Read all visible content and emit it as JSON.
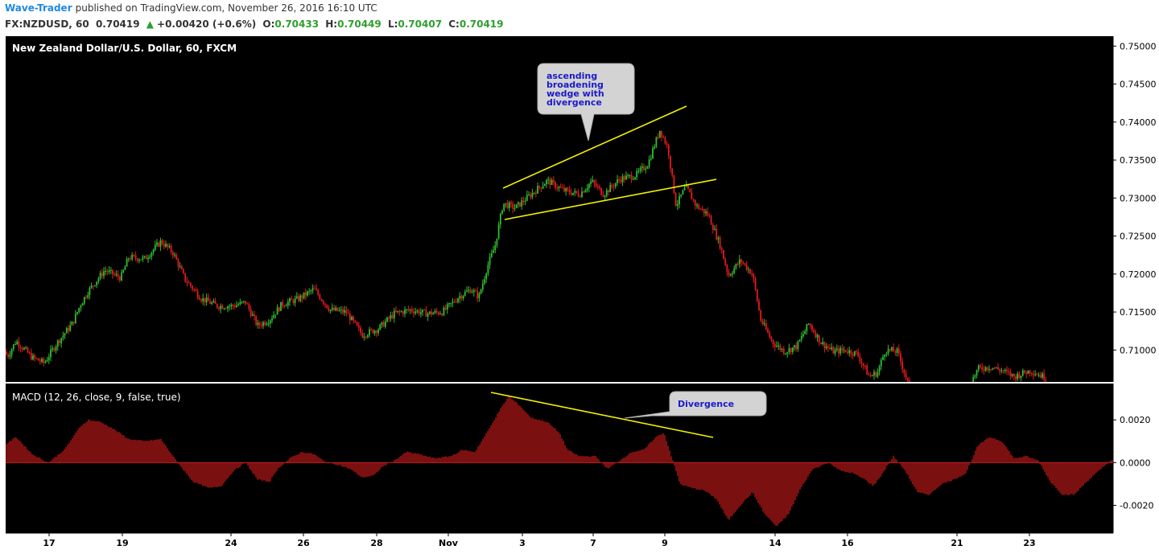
{
  "header": {
    "author": "Wave-Trader",
    "published": "published on TradingView.com, November 26, 2016 16:10 UTC",
    "symbol": "FX:NZDUSD, 60",
    "last": "0.70419",
    "change_arrow": "▲",
    "change": "+0.00420 (+0.6%)",
    "open_label": "O:",
    "open": "0.70433",
    "high_label": "H:",
    "high": "0.70449",
    "low_label": "L:",
    "low": "0.70407",
    "close_label": "C:",
    "close": "0.70419"
  },
  "colors": {
    "background": "#000000",
    "up": "#2fbf2f",
    "down": "#e51b1b",
    "macd": "#cc1a1a",
    "trendline": "#f5f000",
    "callout": "#d3d3d3",
    "callout_text": "#1a1acc"
  },
  "chart_data": [
    {
      "type": "candlestick",
      "title": "New Zealand Dollar/U.S. Dollar, 60, FXCM",
      "ylim": [
        0.7058,
        0.7513
      ],
      "y_ticks": [
        "0.75000",
        "0.74500",
        "0.74000",
        "0.73500",
        "0.73000",
        "0.72500",
        "0.72000",
        "0.71500",
        "0.71000"
      ],
      "x_ticks": [
        "17",
        "19",
        "24",
        "26",
        "28",
        "Nov",
        "3",
        "7",
        "9",
        "14",
        "16",
        "21",
        "23"
      ],
      "close_path": [
        [
          0,
          0.7098
        ],
        [
          10,
          0.7093
        ],
        [
          20,
          0.7112
        ],
        [
          40,
          0.709
        ],
        [
          55,
          0.7083
        ],
        [
          70,
          0.7108
        ],
        [
          90,
          0.7135
        ],
        [
          100,
          0.716
        ],
        [
          110,
          0.7178
        ],
        [
          130,
          0.7205
        ],
        [
          150,
          0.7195
        ],
        [
          160,
          0.7222
        ],
        [
          180,
          0.722
        ],
        [
          200,
          0.7243
        ],
        [
          215,
          0.7228
        ],
        [
          230,
          0.7193
        ],
        [
          250,
          0.7168
        ],
        [
          270,
          0.7158
        ],
        [
          290,
          0.7158
        ],
        [
          305,
          0.7163
        ],
        [
          320,
          0.7132
        ],
        [
          335,
          0.714
        ],
        [
          350,
          0.716
        ],
        [
          370,
          0.7167
        ],
        [
          390,
          0.718
        ],
        [
          410,
          0.7153
        ],
        [
          430,
          0.715
        ],
        [
          450,
          0.712
        ],
        [
          470,
          0.7128
        ],
        [
          490,
          0.7148
        ],
        [
          510,
          0.7153
        ],
        [
          530,
          0.7148
        ],
        [
          550,
          0.715
        ],
        [
          570,
          0.717
        ],
        [
          585,
          0.718
        ],
        [
          595,
          0.717
        ],
        [
          605,
          0.7208
        ],
        [
          615,
          0.7237
        ],
        [
          625,
          0.7293
        ],
        [
          640,
          0.7287
        ],
        [
          660,
          0.7305
        ],
        [
          680,
          0.7323
        ],
        [
          700,
          0.731
        ],
        [
          720,
          0.7305
        ],
        [
          735,
          0.7322
        ],
        [
          750,
          0.7305
        ],
        [
          770,
          0.7325
        ],
        [
          790,
          0.733
        ],
        [
          805,
          0.7345
        ],
        [
          820,
          0.739
        ],
        [
          830,
          0.7365
        ],
        [
          840,
          0.729
        ],
        [
          852,
          0.7315
        ],
        [
          865,
          0.729
        ],
        [
          880,
          0.7278
        ],
        [
          895,
          0.7237
        ],
        [
          905,
          0.7198
        ],
        [
          920,
          0.7218
        ],
        [
          935,
          0.72
        ],
        [
          945,
          0.714
        ],
        [
          960,
          0.711
        ],
        [
          975,
          0.7098
        ],
        [
          990,
          0.7105
        ],
        [
          1005,
          0.7135
        ],
        [
          1020,
          0.711
        ],
        [
          1035,
          0.7098
        ],
        [
          1050,
          0.71
        ],
        [
          1065,
          0.7095
        ],
        [
          1080,
          0.7065
        ],
        [
          1090,
          0.707
        ],
        [
          1100,
          0.71
        ],
        [
          1115,
          0.7098
        ],
        [
          1130,
          0.705
        ],
        [
          1160,
          0.704
        ],
        [
          1200,
          0.7045
        ],
        [
          1215,
          0.7075
        ],
        [
          1230,
          0.7078
        ],
        [
          1245,
          0.7073
        ],
        [
          1260,
          0.7065
        ],
        [
          1280,
          0.7073
        ],
        [
          1300,
          0.7063
        ]
      ]
    },
    {
      "type": "bar",
      "title": "MACD (12, 26, close, 9, false, true)",
      "ylim": [
        -0.0033,
        0.0037
      ],
      "y_ticks": [
        "0.0020",
        "0.0000",
        "-0.0020"
      ],
      "hist_path": [
        [
          5,
          0.0008
        ],
        [
          20,
          0.0012
        ],
        [
          40,
          0.0004
        ],
        [
          60,
          0.0
        ],
        [
          80,
          0.0006
        ],
        [
          100,
          0.0017
        ],
        [
          110,
          0.002
        ],
        [
          125,
          0.0019
        ],
        [
          140,
          0.0016
        ],
        [
          160,
          0.0011
        ],
        [
          180,
          0.001
        ],
        [
          200,
          0.0011
        ],
        [
          215,
          0.0003
        ],
        [
          225,
          -0.0002
        ],
        [
          240,
          -0.0009
        ],
        [
          260,
          -0.0012
        ],
        [
          275,
          -0.0011
        ],
        [
          290,
          -0.0004
        ],
        [
          305,
          0.0
        ],
        [
          320,
          -0.0008
        ],
        [
          335,
          -0.0009
        ],
        [
          345,
          -0.0003
        ],
        [
          360,
          0.0002
        ],
        [
          375,
          0.0005
        ],
        [
          390,
          0.0004
        ],
        [
          405,
          0.0
        ],
        [
          420,
          -0.0001
        ],
        [
          435,
          -0.0003
        ],
        [
          450,
          -0.0007
        ],
        [
          465,
          -0.0006
        ],
        [
          475,
          -0.0002
        ],
        [
          490,
          0.0001
        ],
        [
          505,
          0.0005
        ],
        [
          520,
          0.0004
        ],
        [
          540,
          0.0002
        ],
        [
          560,
          0.0003
        ],
        [
          575,
          0.0006
        ],
        [
          590,
          0.0005
        ],
        [
          605,
          0.0014
        ],
        [
          620,
          0.0024
        ],
        [
          632,
          0.0031
        ],
        [
          645,
          0.0027
        ],
        [
          660,
          0.0021
        ],
        [
          680,
          0.0019
        ],
        [
          695,
          0.0014
        ],
        [
          705,
          0.0006
        ],
        [
          720,
          0.0003
        ],
        [
          740,
          0.0003
        ],
        [
          755,
          -0.0003
        ],
        [
          770,
          0.0001
        ],
        [
          785,
          0.0005
        ],
        [
          800,
          0.0006
        ],
        [
          815,
          0.0012
        ],
        [
          825,
          0.0014
        ],
        [
          835,
          0.0002
        ],
        [
          845,
          -0.001
        ],
        [
          860,
          -0.0012
        ],
        [
          875,
          -0.0013
        ],
        [
          890,
          -0.0017
        ],
        [
          905,
          -0.0027
        ],
        [
          920,
          -0.002
        ],
        [
          935,
          -0.0014
        ],
        [
          950,
          -0.0024
        ],
        [
          965,
          -0.003
        ],
        [
          980,
          -0.0024
        ],
        [
          995,
          -0.0012
        ],
        [
          1010,
          -0.0003
        ],
        [
          1030,
          0.0
        ],
        [
          1045,
          -0.0004
        ],
        [
          1060,
          -0.0005
        ],
        [
          1075,
          -0.0008
        ],
        [
          1085,
          -0.0011
        ],
        [
          1095,
          -0.0006
        ],
        [
          1110,
          0.0003
        ],
        [
          1125,
          -0.0004
        ],
        [
          1140,
          -0.0014
        ],
        [
          1155,
          -0.0015
        ],
        [
          1170,
          -0.001
        ],
        [
          1185,
          -0.0008
        ],
        [
          1200,
          -0.0005
        ],
        [
          1215,
          0.0008
        ],
        [
          1230,
          0.0012
        ],
        [
          1245,
          0.001
        ],
        [
          1260,
          0.0002
        ],
        [
          1275,
          0.0003
        ],
        [
          1290,
          0.0001
        ],
        [
          1305,
          -0.0009
        ],
        [
          1320,
          -0.0015
        ],
        [
          1335,
          -0.0015
        ],
        [
          1350,
          -0.0009
        ],
        [
          1365,
          -0.0004
        ],
        [
          1380,
          0.0001
        ]
      ]
    }
  ],
  "annotations": {
    "wedge_lines": [
      [
        "ascending",
        "broadening",
        "wedge with",
        "divergence"
      ]
    ],
    "divergence": "Divergence"
  }
}
